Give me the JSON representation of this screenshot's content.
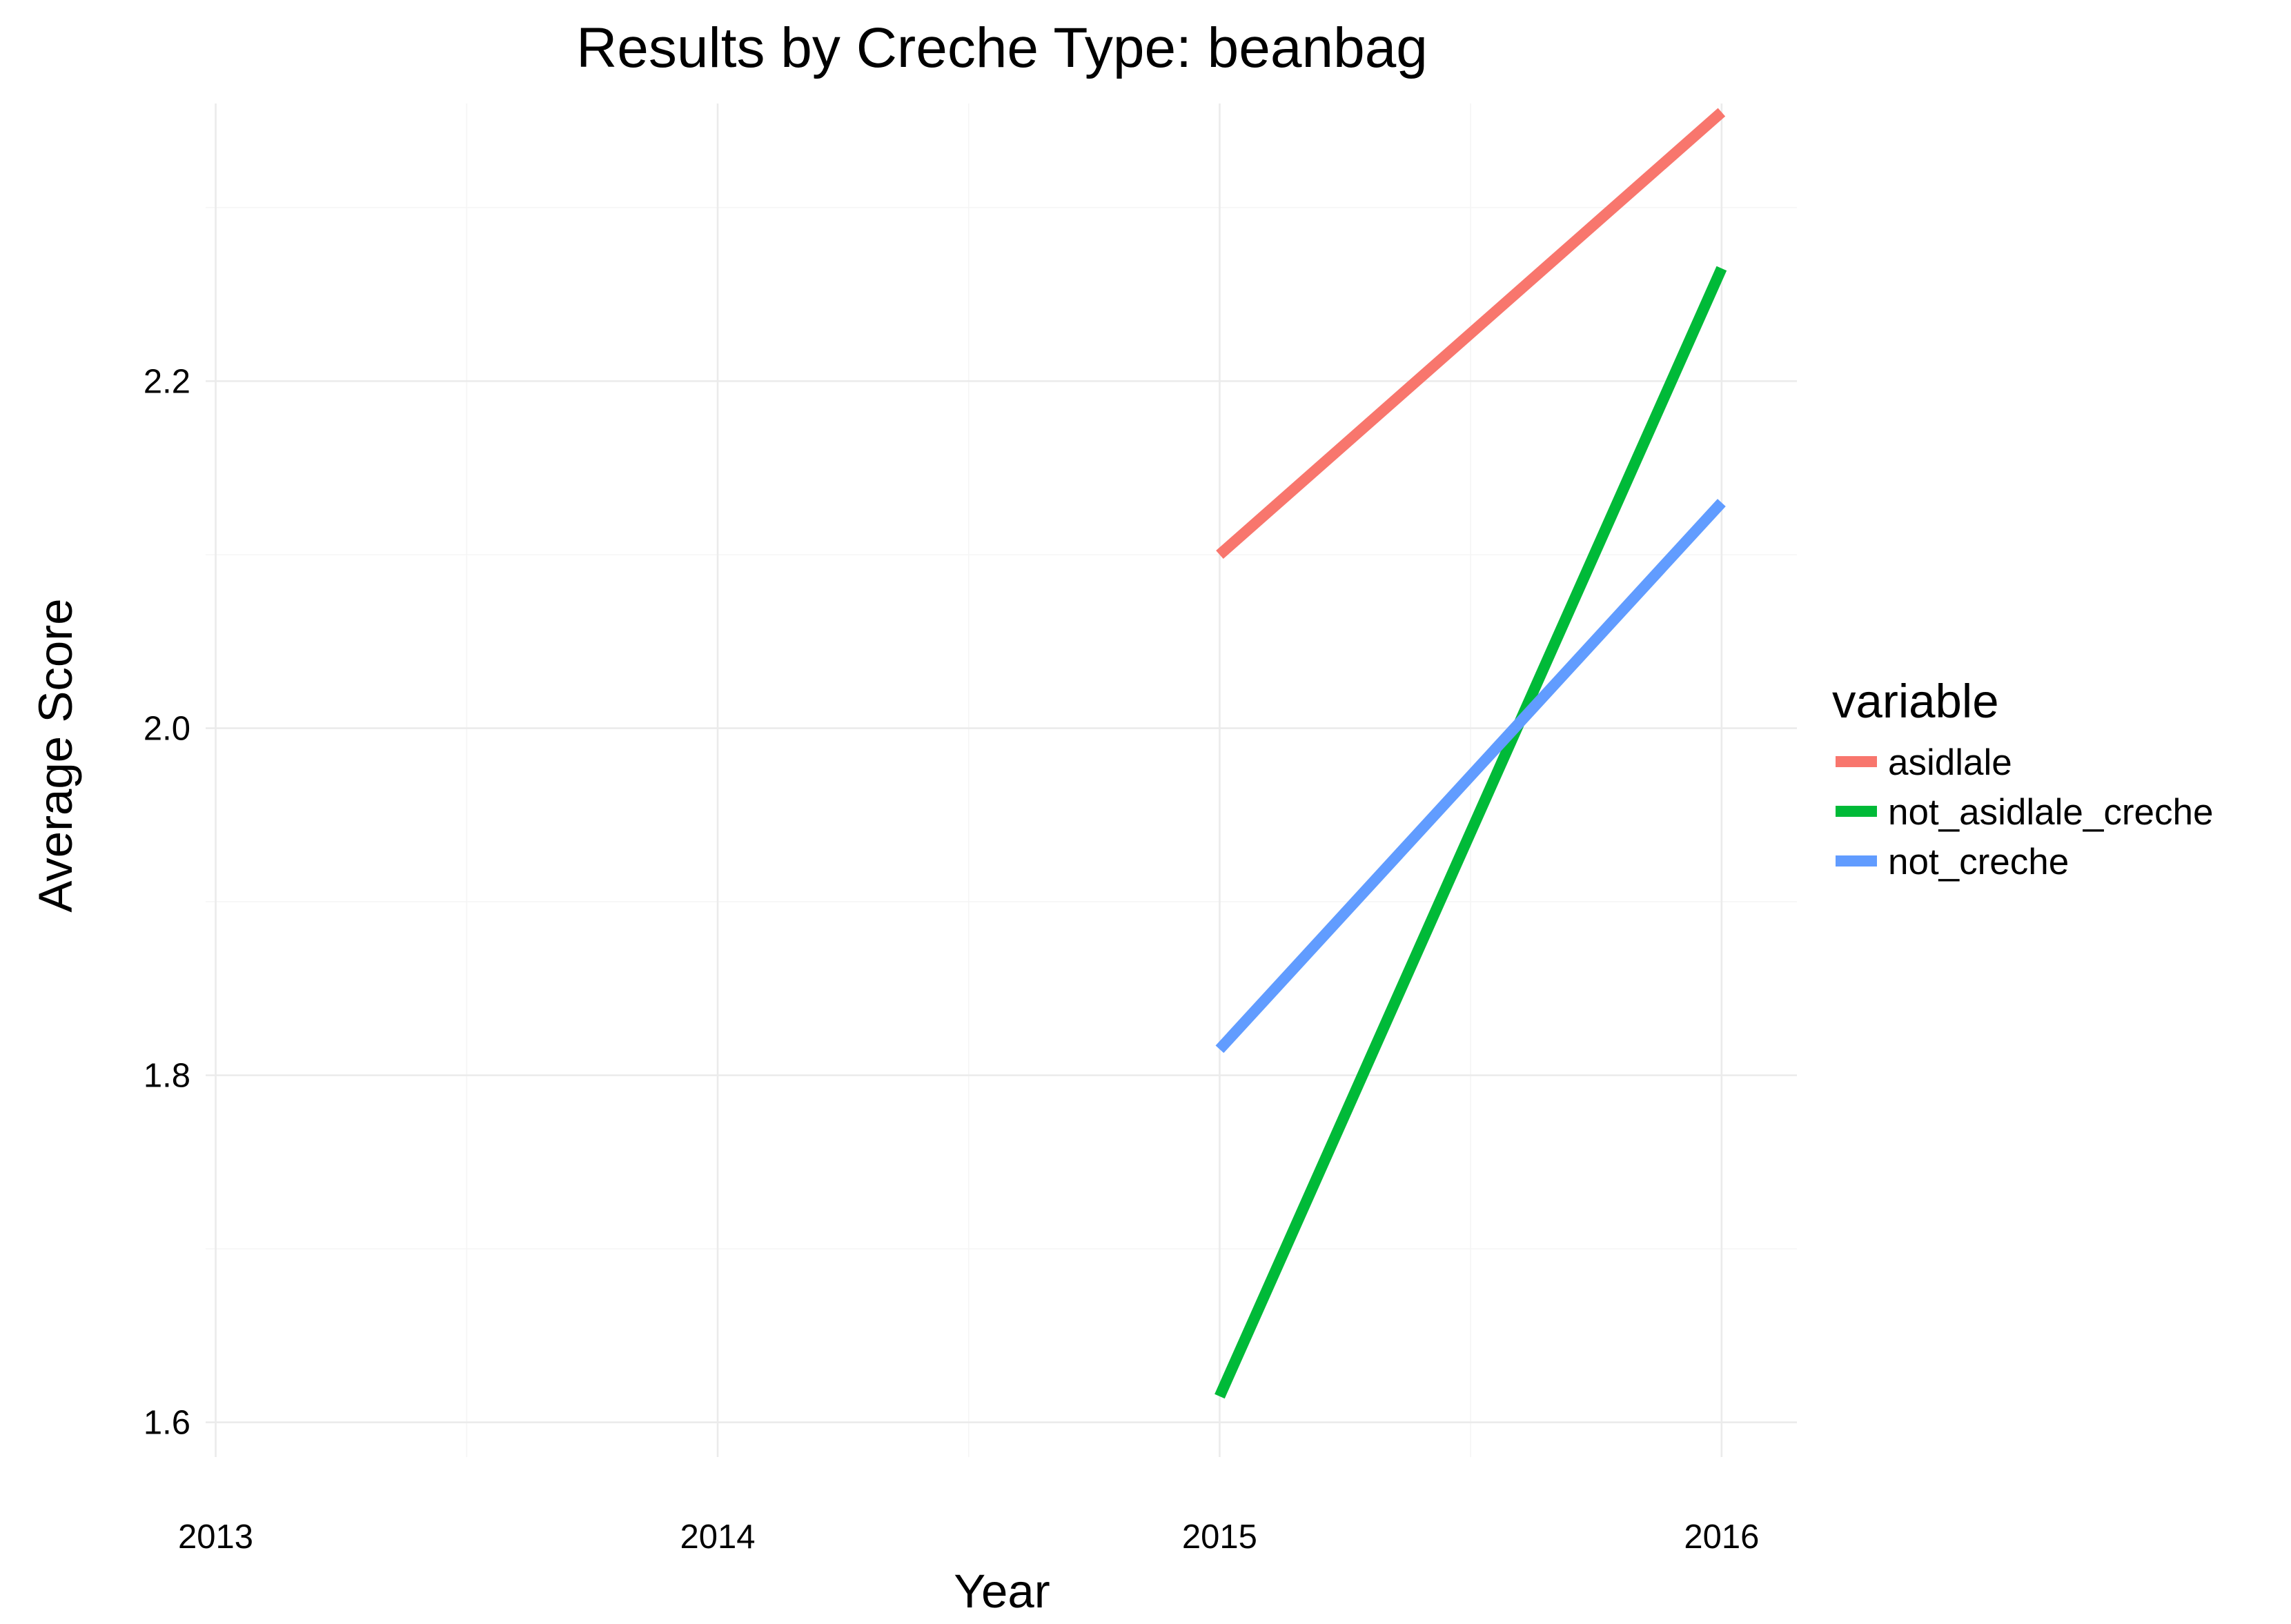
{
  "chart_data": {
    "type": "line",
    "title": "Results by Creche Type: beanbag",
    "xlabel": "Year",
    "ylabel": "Average Score",
    "x_ticks": [
      "2013",
      "2014",
      "2015",
      "2016"
    ],
    "y_ticks": [
      "1.6",
      "1.8",
      "2.0",
      "2.2"
    ],
    "xlim": [
      2012.98,
      2016.15
    ],
    "ylim": [
      1.58,
      2.36
    ],
    "grid": true,
    "legend": {
      "title": "variable",
      "placement": "right"
    },
    "series": [
      {
        "name": "asidlale",
        "color": "#F8766D",
        "x": [
          2015,
          2016
        ],
        "y": [
          2.1,
          2.355
        ]
      },
      {
        "name": "not_asidlale_creche",
        "color": "#00BA38",
        "x": [
          2015,
          2016
        ],
        "y": [
          1.615,
          2.265
        ]
      },
      {
        "name": "not_creche",
        "color": "#619CFF",
        "x": [
          2015,
          2016
        ],
        "y": [
          1.815,
          2.13
        ]
      }
    ]
  }
}
